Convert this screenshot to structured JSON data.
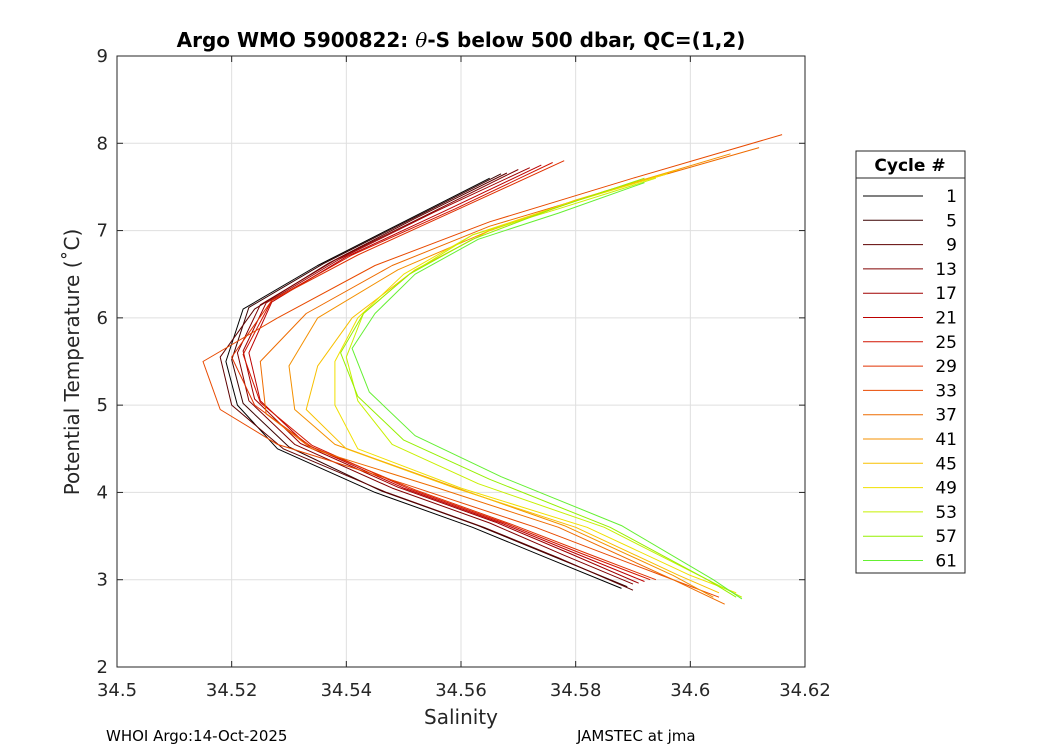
{
  "chart_data": {
    "type": "line",
    "title_prefix": "Argo WMO 5900822: ",
    "title_theta": "θ",
    "title_suffix": "-S below 500 dbar,  QC=(1,2)",
    "xlabel": "Salinity",
    "ylabel": "Potential Temperature (˚C)",
    "xlim": [
      34.5,
      34.62
    ],
    "ylim": [
      2,
      9
    ],
    "xticks": [
      34.5,
      34.52,
      34.54,
      34.56,
      34.58,
      34.6,
      34.62
    ],
    "xtick_labels": [
      "34.5",
      "34.52",
      "34.54",
      "34.56",
      "34.58",
      "34.6",
      "34.62"
    ],
    "yticks": [
      2,
      3,
      4,
      5,
      6,
      7,
      8,
      9
    ],
    "ytick_labels": [
      "2",
      "3",
      "4",
      "5",
      "6",
      "7",
      "8",
      "9"
    ],
    "grid": true,
    "legend_position": "outside-right",
    "legend_title": "Cycle #",
    "series": [
      {
        "name": "1",
        "color": "#000000",
        "points": [
          [
            34.565,
            7.6
          ],
          [
            34.55,
            7.1
          ],
          [
            34.535,
            6.6
          ],
          [
            34.522,
            6.1
          ],
          [
            34.519,
            5.5
          ],
          [
            34.521,
            5.0
          ],
          [
            34.528,
            4.5
          ],
          [
            34.545,
            4.0
          ],
          [
            34.562,
            3.6
          ],
          [
            34.575,
            3.25
          ],
          [
            34.588,
            2.9
          ]
        ]
      },
      {
        "name": "5",
        "color": "#3a0000",
        "points": [
          [
            34.567,
            7.65
          ],
          [
            34.551,
            7.12
          ],
          [
            34.536,
            6.62
          ],
          [
            34.523,
            6.12
          ],
          [
            34.52,
            5.52
          ],
          [
            34.522,
            5.02
          ],
          [
            34.53,
            4.52
          ],
          [
            34.546,
            4.02
          ],
          [
            34.563,
            3.62
          ],
          [
            34.576,
            3.27
          ],
          [
            34.589,
            2.92
          ]
        ]
      },
      {
        "name": "9",
        "color": "#5e0000",
        "points": [
          [
            34.568,
            7.66
          ],
          [
            34.552,
            7.14
          ],
          [
            34.537,
            6.63
          ],
          [
            34.524,
            6.1
          ],
          [
            34.518,
            5.55
          ],
          [
            34.52,
            5.0
          ],
          [
            34.529,
            4.5
          ],
          [
            34.547,
            4.0
          ],
          [
            34.564,
            3.6
          ],
          [
            34.577,
            3.25
          ],
          [
            34.59,
            2.88
          ]
        ]
      },
      {
        "name": "13",
        "color": "#800000",
        "points": [
          [
            34.57,
            7.7
          ],
          [
            34.554,
            7.18
          ],
          [
            34.538,
            6.66
          ],
          [
            34.525,
            6.15
          ],
          [
            34.521,
            5.6
          ],
          [
            34.523,
            5.05
          ],
          [
            34.531,
            4.55
          ],
          [
            34.548,
            4.05
          ],
          [
            34.565,
            3.65
          ],
          [
            34.578,
            3.28
          ],
          [
            34.59,
            2.95
          ]
        ]
      },
      {
        "name": "17",
        "color": "#a00000",
        "points": [
          [
            34.572,
            7.72
          ],
          [
            34.555,
            7.2
          ],
          [
            34.539,
            6.68
          ],
          [
            34.526,
            6.17
          ],
          [
            34.522,
            5.62
          ],
          [
            34.524,
            5.07
          ],
          [
            34.532,
            4.56
          ],
          [
            34.549,
            4.06
          ],
          [
            34.566,
            3.66
          ],
          [
            34.579,
            3.3
          ],
          [
            34.591,
            2.96
          ]
        ]
      },
      {
        "name": "21",
        "color": "#bc0000",
        "points": [
          [
            34.574,
            7.75
          ],
          [
            34.557,
            7.22
          ],
          [
            34.54,
            6.7
          ],
          [
            34.527,
            6.18
          ],
          [
            34.523,
            5.6
          ],
          [
            34.525,
            5.05
          ],
          [
            34.533,
            4.55
          ],
          [
            34.55,
            4.05
          ],
          [
            34.567,
            3.65
          ],
          [
            34.58,
            3.3
          ],
          [
            34.592,
            2.98
          ]
        ]
      },
      {
        "name": "25",
        "color": "#d21400",
        "points": [
          [
            34.576,
            7.78
          ],
          [
            34.559,
            7.25
          ],
          [
            34.541,
            6.72
          ],
          [
            34.527,
            6.2
          ],
          [
            34.522,
            5.58
          ],
          [
            34.525,
            5.03
          ],
          [
            34.534,
            4.54
          ],
          [
            34.551,
            4.04
          ],
          [
            34.568,
            3.64
          ],
          [
            34.581,
            3.3
          ],
          [
            34.593,
            3.0
          ]
        ]
      },
      {
        "name": "29",
        "color": "#e03000",
        "points": [
          [
            34.578,
            7.8
          ],
          [
            34.56,
            7.26
          ],
          [
            34.542,
            6.72
          ],
          [
            34.527,
            6.2
          ],
          [
            34.52,
            5.55
          ],
          [
            34.524,
            5.0
          ],
          [
            34.534,
            4.52
          ],
          [
            34.552,
            4.03
          ],
          [
            34.569,
            3.63
          ],
          [
            34.582,
            3.3
          ],
          [
            34.594,
            3.0
          ]
        ]
      },
      {
        "name": "33",
        "color": "#e84a00",
        "points": [
          [
            34.616,
            8.1
          ],
          [
            34.59,
            7.6
          ],
          [
            34.565,
            7.1
          ],
          [
            34.545,
            6.6
          ],
          [
            34.528,
            6.0
          ],
          [
            34.515,
            5.5
          ],
          [
            34.518,
            4.95
          ],
          [
            34.528,
            4.55
          ],
          [
            34.55,
            4.1
          ],
          [
            34.573,
            3.6
          ],
          [
            34.595,
            3.05
          ],
          [
            34.605,
            2.8
          ]
        ]
      },
      {
        "name": "37",
        "color": "#ee6c00",
        "points": [
          [
            34.612,
            7.95
          ],
          [
            34.588,
            7.5
          ],
          [
            34.565,
            7.05
          ],
          [
            34.548,
            6.6
          ],
          [
            34.533,
            6.05
          ],
          [
            34.525,
            5.5
          ],
          [
            34.526,
            4.9
          ],
          [
            34.534,
            4.5
          ],
          [
            34.556,
            4.05
          ],
          [
            34.577,
            3.6
          ],
          [
            34.597,
            3.0
          ],
          [
            34.606,
            2.72
          ]
        ]
      },
      {
        "name": "41",
        "color": "#f49000",
        "points": [
          [
            34.607,
            7.88
          ],
          [
            34.585,
            7.45
          ],
          [
            34.565,
            7.0
          ],
          [
            34.549,
            6.55
          ],
          [
            34.535,
            6.0
          ],
          [
            34.53,
            5.45
          ],
          [
            34.531,
            4.95
          ],
          [
            34.538,
            4.55
          ],
          [
            34.558,
            4.08
          ],
          [
            34.578,
            3.62
          ],
          [
            34.597,
            3.05
          ],
          [
            34.604,
            2.8
          ]
        ]
      },
      {
        "name": "45",
        "color": "#f8c000",
        "points": [
          [
            34.598,
            7.7
          ],
          [
            34.58,
            7.35
          ],
          [
            34.565,
            7.0
          ],
          [
            34.552,
            6.55
          ],
          [
            34.541,
            6.0
          ],
          [
            34.535,
            5.45
          ],
          [
            34.533,
            4.95
          ],
          [
            34.54,
            4.5
          ],
          [
            34.559,
            4.05
          ],
          [
            34.58,
            3.6
          ],
          [
            34.598,
            3.05
          ],
          [
            34.605,
            2.85
          ]
        ]
      },
      {
        "name": "49",
        "color": "#f0e000",
        "points": [
          [
            34.596,
            7.65
          ],
          [
            34.578,
            7.3
          ],
          [
            34.562,
            6.95
          ],
          [
            34.55,
            6.5
          ],
          [
            34.542,
            6.0
          ],
          [
            34.538,
            5.5
          ],
          [
            34.538,
            5.0
          ],
          [
            34.542,
            4.5
          ],
          [
            34.56,
            4.05
          ],
          [
            34.582,
            3.6
          ],
          [
            34.6,
            3.05
          ],
          [
            34.608,
            2.85
          ]
        ]
      },
      {
        "name": "53",
        "color": "#c8f000",
        "points": [
          [
            34.594,
            7.6
          ],
          [
            34.577,
            7.25
          ],
          [
            34.562,
            6.95
          ],
          [
            34.551,
            6.5
          ],
          [
            34.543,
            6.05
          ],
          [
            34.54,
            5.55
          ],
          [
            34.542,
            5.05
          ],
          [
            34.548,
            4.55
          ],
          [
            34.563,
            4.1
          ],
          [
            34.585,
            3.6
          ],
          [
            34.603,
            3.0
          ],
          [
            34.609,
            2.8
          ]
        ]
      },
      {
        "name": "57",
        "color": "#96f000",
        "points": [
          [
            34.592,
            7.6
          ],
          [
            34.576,
            7.25
          ],
          [
            34.562,
            6.9
          ],
          [
            34.551,
            6.5
          ],
          [
            34.543,
            6.05
          ],
          [
            34.539,
            5.6
          ],
          [
            34.542,
            5.1
          ],
          [
            34.55,
            4.6
          ],
          [
            34.565,
            4.15
          ],
          [
            34.586,
            3.6
          ],
          [
            34.603,
            3.0
          ],
          [
            34.608,
            2.8
          ]
        ]
      },
      {
        "name": "61",
        "color": "#64f032",
        "points": [
          [
            34.592,
            7.55
          ],
          [
            34.577,
            7.2
          ],
          [
            34.563,
            6.9
          ],
          [
            34.552,
            6.5
          ],
          [
            34.545,
            6.05
          ],
          [
            34.541,
            5.65
          ],
          [
            34.544,
            5.15
          ],
          [
            34.552,
            4.65
          ],
          [
            34.567,
            4.18
          ],
          [
            34.588,
            3.62
          ],
          [
            34.604,
            3.0
          ],
          [
            34.609,
            2.78
          ]
        ]
      }
    ]
  },
  "footer": {
    "left": "WHOI Argo:14-Oct-2025",
    "right": "JAMSTEC at jma"
  }
}
